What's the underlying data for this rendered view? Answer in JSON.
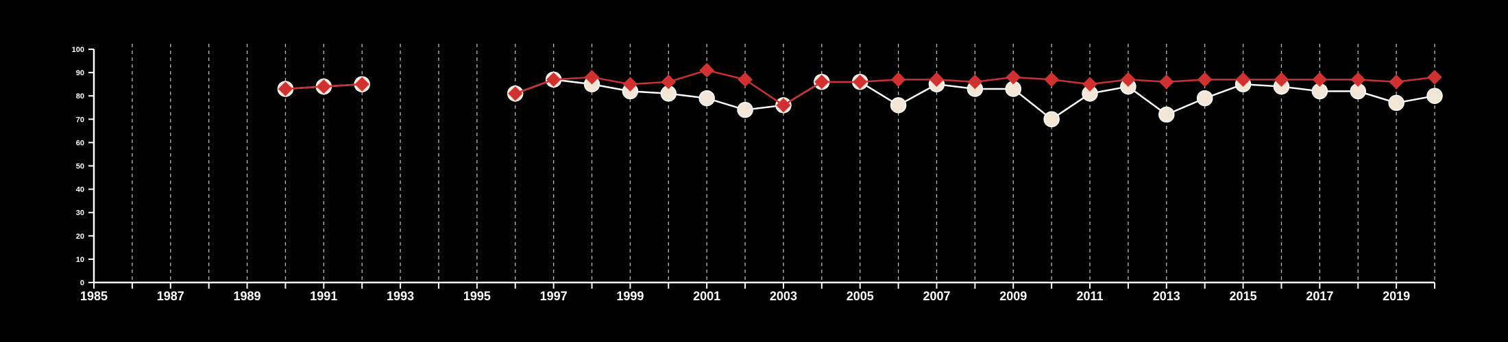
{
  "chart_data": {
    "type": "line",
    "x_range": [
      1985,
      2020
    ],
    "ylim": [
      0,
      100
    ],
    "y_ticks": [
      0,
      10,
      20,
      30,
      40,
      50,
      60,
      70,
      80,
      90,
      100
    ],
    "x_tick_labels": [
      1985,
      1987,
      1989,
      1991,
      1993,
      1995,
      1997,
      1999,
      2001,
      2003,
      2005,
      2007,
      2009,
      2011,
      2013,
      2015,
      2017,
      2019
    ],
    "grid": "vertical dashed lines at each year",
    "background": "#000000",
    "axis_color": "#ffffff",
    "series": [
      {
        "color": "#f2e6d6",
        "line_color": "#ffffff",
        "marker": "circle",
        "points": [
          [
            1990,
            83
          ],
          [
            1991,
            84
          ],
          [
            1992,
            85
          ],
          null,
          [
            1996,
            81
          ],
          [
            1997,
            87
          ],
          [
            1998,
            85
          ],
          [
            1999,
            82
          ],
          [
            2000,
            81
          ],
          [
            2001,
            79
          ],
          [
            2002,
            74
          ],
          [
            2003,
            76
          ],
          [
            2004,
            86
          ],
          [
            2005,
            86
          ],
          [
            2006,
            76
          ],
          [
            2007,
            85
          ],
          [
            2008,
            83
          ],
          [
            2009,
            83
          ],
          [
            2010,
            70
          ],
          [
            2011,
            81
          ],
          [
            2012,
            84
          ],
          [
            2013,
            72
          ],
          [
            2014,
            79
          ],
          [
            2015,
            85
          ],
          [
            2016,
            84
          ],
          [
            2017,
            82
          ],
          [
            2018,
            82
          ],
          [
            2019,
            77
          ],
          [
            2020,
            80
          ]
        ]
      },
      {
        "color": "#d03030",
        "line_color": "#c83232",
        "marker": "diamond",
        "points": [
          [
            1990,
            83
          ],
          [
            1991,
            84
          ],
          [
            1992,
            85
          ],
          null,
          [
            1996,
            81
          ],
          [
            1997,
            87
          ],
          [
            1998,
            88
          ],
          [
            1999,
            85
          ],
          [
            2000,
            86
          ],
          [
            2001,
            91
          ],
          [
            2002,
            87
          ],
          [
            2003,
            76
          ],
          [
            2004,
            86
          ],
          [
            2005,
            86
          ],
          [
            2006,
            87
          ],
          [
            2007,
            87
          ],
          [
            2008,
            86
          ],
          [
            2009,
            88
          ],
          [
            2010,
            87
          ],
          [
            2011,
            85
          ],
          [
            2012,
            87
          ],
          [
            2013,
            86
          ],
          [
            2014,
            87
          ],
          [
            2015,
            87
          ],
          [
            2016,
            87
          ],
          [
            2017,
            87
          ],
          [
            2018,
            87
          ],
          [
            2019,
            86
          ],
          [
            2020,
            88
          ]
        ]
      }
    ]
  }
}
